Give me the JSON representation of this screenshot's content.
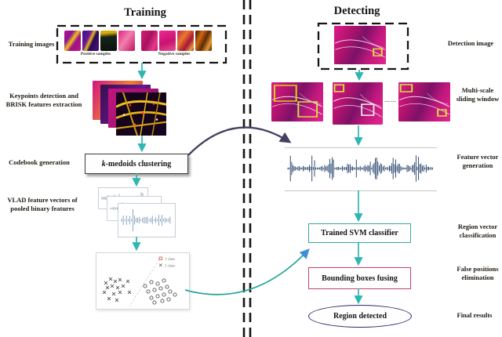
{
  "titles": {
    "training": "Training",
    "detecting": "Detecting"
  },
  "training": {
    "images_label": "Training images",
    "positive_label": "Positive samples",
    "negative_label": "Negative samples",
    "keypoints_label": "Keypoints detection and BRISK features extraction",
    "codebook_label": "Codebook generation",
    "vlad_label": "VLAD feature vectors of pooled binary features",
    "kmedoids_k": "k",
    "kmedoids_rest": "-medoids clustering",
    "scatter_legend_1": "1 class",
    "scatter_legend_2": "2 class"
  },
  "detecting": {
    "detection_image_label": "Detection image",
    "multiscale_label": "Multi-scale sliding window",
    "ellipsis": "……",
    "feature_vector_label": "Feature vector generation",
    "region_vector_label": "Region vector classification",
    "false_positions_label": "False positions elimination",
    "final_results_label": "Final results",
    "svm_box": "Trained SVM classifier",
    "fusing_box": "Bounding boxes fusing",
    "detected_ellipse": "Region detected"
  },
  "colors": {
    "arrow_teal": "#2eb6b2",
    "arrow_navy": "#44415e",
    "arrow_blue_head": "#3f8fd6",
    "svm_border": "#3aa8a4",
    "fusing_border": "#c4406e",
    "ellipse_border": "#2c2a66",
    "waveform": "#1d3b66"
  }
}
